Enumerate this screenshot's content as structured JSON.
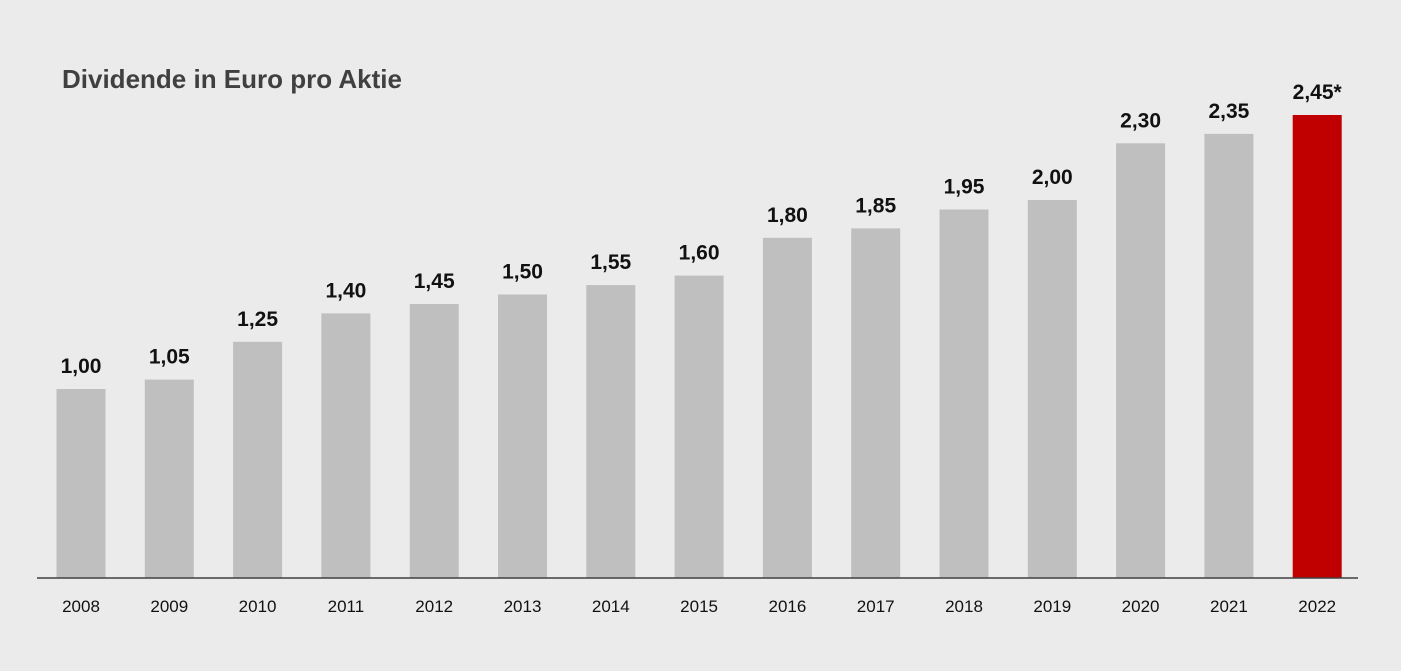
{
  "chart_data": {
    "type": "bar",
    "title": "Dividende in Euro pro Aktie",
    "categories": [
      "2008",
      "2009",
      "2010",
      "2011",
      "2012",
      "2013",
      "2014",
      "2015",
      "2016",
      "2017",
      "2018",
      "2019",
      "2020",
      "2021",
      "2022"
    ],
    "values": [
      1.0,
      1.05,
      1.25,
      1.4,
      1.45,
      1.5,
      1.55,
      1.6,
      1.8,
      1.85,
      1.95,
      2.0,
      2.3,
      2.35,
      2.45
    ],
    "value_labels": [
      "1,00",
      "1,05",
      "1,25",
      "1,40",
      "1,45",
      "1,50",
      "1,55",
      "1,60",
      "1,80",
      "1,85",
      "1,95",
      "2,00",
      "2,30",
      "2,35",
      "2,45*"
    ],
    "ylim": [
      0,
      2.45
    ],
    "grid": false,
    "legend": "none",
    "colors": {
      "default_bar": "#bfbfbf",
      "highlight_bar": "#c00000",
      "background": "#ebebeb",
      "axis": "#404040"
    },
    "highlight_index": 14
  }
}
